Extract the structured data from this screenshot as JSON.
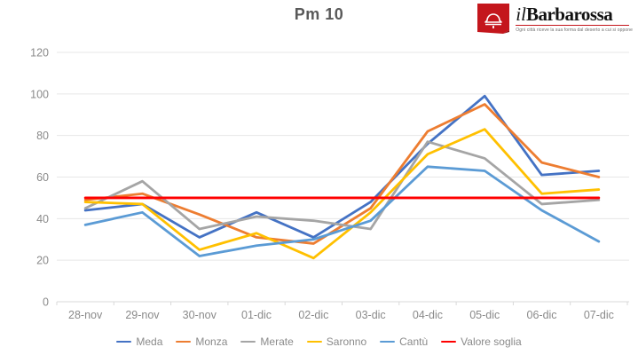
{
  "header": {
    "logo": {
      "brand_prefix": "il",
      "brand_name": "Barbarossa",
      "tagline": "Ogni città riceve la sua forma dal deserto a cui si oppone",
      "brand_red": "#c4161c"
    }
  },
  "chart_data": {
    "type": "line",
    "title": "Pm 10",
    "categories": [
      "28-nov",
      "29-nov",
      "30-nov",
      "01-dic",
      "02-dic",
      "03-dic",
      "04-dic",
      "05-dic",
      "06-dic",
      "07-dic"
    ],
    "series": [
      {
        "name": "Meda",
        "color": "#4472C4",
        "values": [
          44,
          47,
          31,
          43,
          31,
          48,
          76,
          99,
          61,
          63
        ]
      },
      {
        "name": "Monza",
        "color": "#ED7D31",
        "values": [
          49,
          52,
          42,
          31,
          28,
          45,
          82,
          95,
          67,
          60
        ]
      },
      {
        "name": "Merate",
        "color": "#A5A5A5",
        "values": [
          45,
          58,
          35,
          41,
          39,
          35,
          77,
          69,
          47,
          49
        ]
      },
      {
        "name": "Saronno",
        "color": "#FFC000",
        "values": [
          48,
          47,
          25,
          33,
          21,
          43,
          71,
          83,
          52,
          54
        ]
      },
      {
        "name": "Cantù",
        "color": "#5B9BD5",
        "values": [
          37,
          43,
          22,
          27,
          30,
          39,
          65,
          63,
          44,
          29
        ]
      },
      {
        "name": "Valore soglia",
        "color": "#FF0000",
        "values": [
          50,
          50,
          50,
          50,
          50,
          50,
          50,
          50,
          50,
          50
        ]
      }
    ],
    "ylim": [
      0,
      120
    ],
    "ytick_step": 20,
    "xlabel": "",
    "ylabel": "",
    "grid": true,
    "legend_position": "bottom"
  },
  "style": {
    "title_color": "#595959",
    "axis_text_color": "#8a8a8a",
    "gridline_color": "#e7e7e7",
    "axis_line_color": "#d9d9d9",
    "background": "#ffffff"
  }
}
